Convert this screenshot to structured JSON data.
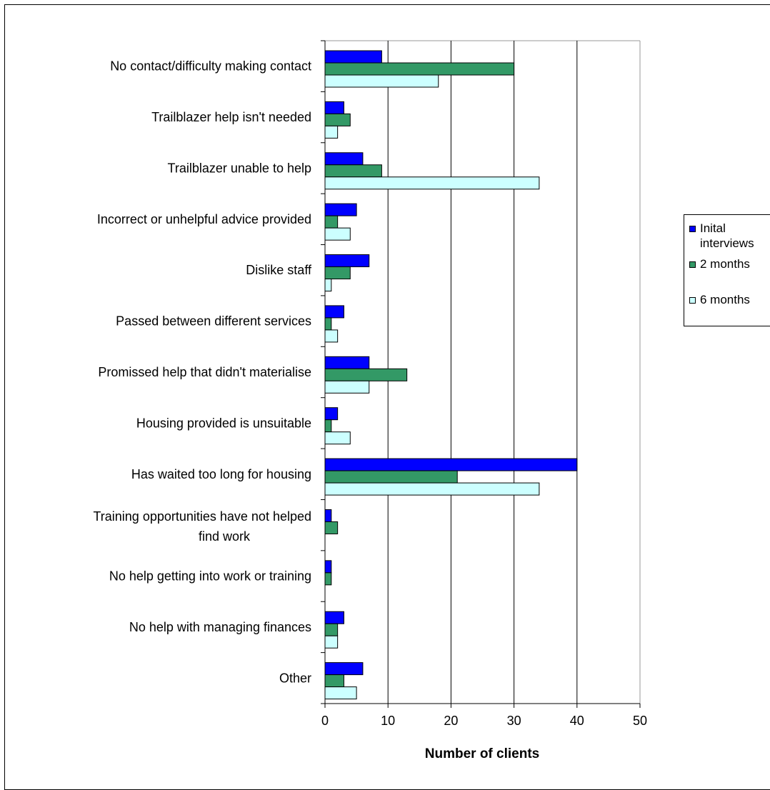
{
  "chart_data": {
    "type": "bar",
    "orientation": "horizontal",
    "categories": [
      "No contact/difficulty making contact",
      "Trailblazer help isn't needed",
      "Trailblazer unable to help",
      "Incorrect or unhelpful advice provided",
      "Dislike staff",
      "Passed between different services",
      "Promissed help that didn't materialise",
      "Housing provided is unsuitable",
      "Has waited too long for housing",
      "Training opportunities have not helped find work",
      "No help getting into work or training",
      "No help with managing finances",
      "Other"
    ],
    "series": [
      {
        "name": "Inital interviews",
        "color": "#0000ff",
        "values": [
          9,
          3,
          6,
          5,
          7,
          3,
          7,
          2,
          40,
          1,
          1,
          3,
          6
        ]
      },
      {
        "name": "2 months",
        "color": "#339966",
        "values": [
          30,
          4,
          9,
          2,
          4,
          1,
          13,
          1,
          21,
          2,
          1,
          2,
          3
        ]
      },
      {
        "name": "6 months",
        "color": "#ccffff",
        "values": [
          18,
          2,
          34,
          4,
          1,
          2,
          7,
          4,
          34,
          0,
          0,
          2,
          5
        ]
      }
    ],
    "xlabel": "Number of clients",
    "xlim": [
      0,
      50
    ],
    "xticks": [
      "0",
      "10",
      "20",
      "30",
      "40",
      "50"
    ],
    "gridlines": true,
    "legend_position": "right"
  },
  "legend": {
    "items": [
      {
        "label_line1": "Inital",
        "label_line2": "interviews"
      },
      {
        "label_line1": "2 months",
        "label_line2": ""
      },
      {
        "label_line1": "6 months",
        "label_line2": ""
      }
    ]
  }
}
